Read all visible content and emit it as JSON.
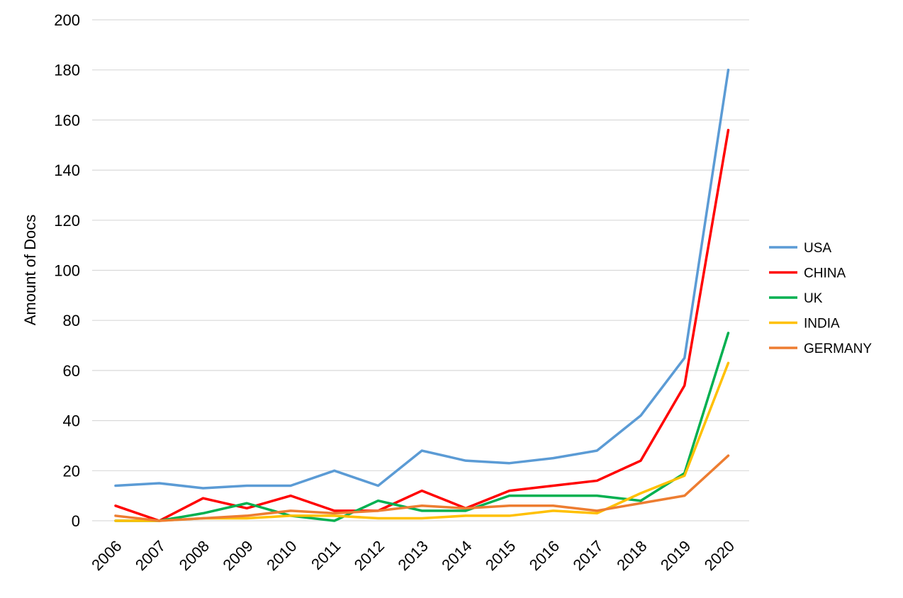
{
  "chart_data": {
    "type": "line",
    "title": "",
    "xlabel": "",
    "ylabel": "Amount of Docs",
    "ylim": [
      0,
      200
    ],
    "y_ticks": [
      "0",
      "20",
      "40",
      "60",
      "80",
      "100",
      "120",
      "140",
      "160",
      "180",
      "200"
    ],
    "grid": "horizontal",
    "legend_position": "right",
    "categories": [
      "2006",
      "2007",
      "2008",
      "2009",
      "2010",
      "2011",
      "2012",
      "2013",
      "2014",
      "2015",
      "2016",
      "2017",
      "2018",
      "2019",
      "2020"
    ],
    "series": [
      {
        "name": "USA",
        "color": "#5b9bd5",
        "values": [
          14,
          15,
          13,
          14,
          14,
          20,
          14,
          28,
          24,
          23,
          25,
          28,
          42,
          65,
          180
        ]
      },
      {
        "name": "CHINA",
        "color": "#ff0000",
        "values": [
          6,
          0,
          9,
          5,
          10,
          4,
          4,
          12,
          5,
          12,
          14,
          16,
          24,
          54,
          156
        ]
      },
      {
        "name": "UK",
        "color": "#00b050",
        "values": [
          0,
          0,
          3,
          7,
          2,
          0,
          8,
          4,
          4,
          10,
          10,
          10,
          8,
          19,
          75
        ]
      },
      {
        "name": "INDIA",
        "color": "#ffc000",
        "values": [
          0,
          0,
          1,
          1,
          2,
          2,
          1,
          1,
          2,
          2,
          4,
          3,
          11,
          18,
          63
        ]
      },
      {
        "name": "GERMANY",
        "color": "#ed7d31",
        "values": [
          2,
          0,
          1,
          2,
          4,
          3,
          4,
          6,
          5,
          6,
          6,
          4,
          7,
          10,
          26
        ]
      }
    ]
  }
}
